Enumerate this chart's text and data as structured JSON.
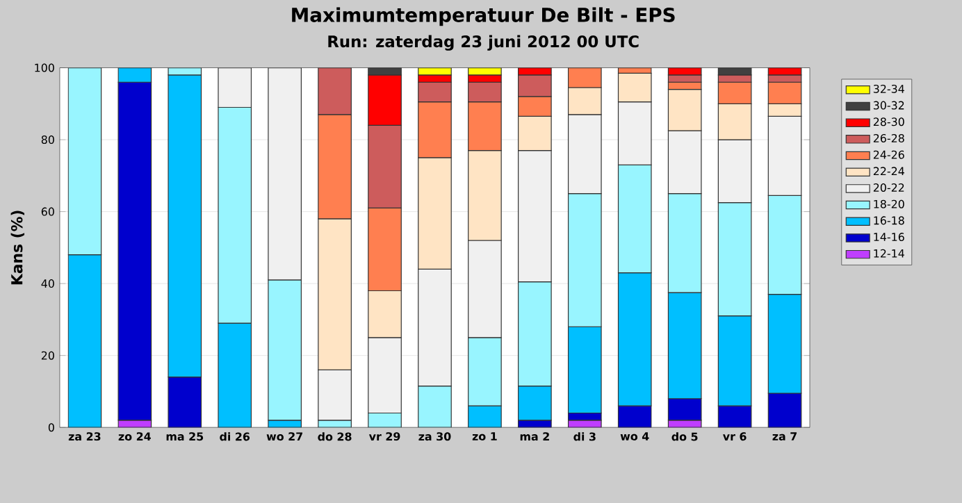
{
  "chart_data": {
    "type": "bar",
    "title": "Maximumtemperatuur De Bilt - EPS",
    "subtitle": "Run: zaterdag 23 juni 2012   00 UTC",
    "ylabel": "Kans (%)",
    "categories": [
      "za 23",
      "zo 24",
      "ma 25",
      "di 26",
      "wo 27",
      "do 28",
      "vr 29",
      "za 30",
      "zo 1",
      "ma 2",
      "di 3",
      "wo 4",
      "do 5",
      "vr 6",
      "za 7"
    ],
    "stacked": true,
    "ylim": [
      0,
      100
    ],
    "yticks": [
      0,
      20,
      40,
      60,
      80,
      100
    ],
    "grid": "y",
    "legend": "right",
    "series": [
      {
        "name": "12-14",
        "color": "#bf3eff",
        "values": [
          0,
          2,
          0,
          0,
          0,
          0,
          0,
          0,
          0,
          0,
          2,
          0,
          2,
          0,
          0
        ]
      },
      {
        "name": "14-16",
        "color": "#0000cd",
        "values": [
          0,
          94,
          14,
          0,
          0,
          0,
          0,
          0,
          0,
          2,
          2,
          6,
          6,
          6,
          9.5
        ]
      },
      {
        "name": "16-18",
        "color": "#00bfff",
        "values": [
          48,
          4,
          84,
          29,
          2,
          0,
          0,
          0,
          6,
          9.5,
          24,
          37,
          29.5,
          25,
          27.5
        ]
      },
      {
        "name": "18-20",
        "color": "#98f5ff",
        "values": [
          52,
          0,
          2,
          60,
          39,
          2,
          4,
          11.5,
          19,
          29,
          37,
          30,
          27.5,
          31.5,
          27.5
        ]
      },
      {
        "name": "20-22",
        "color": "#f0f0f0",
        "values": [
          0,
          0,
          0,
          11,
          59,
          14,
          21,
          32.5,
          27,
          36.5,
          22,
          17.5,
          17.5,
          17.5,
          22
        ]
      },
      {
        "name": "22-24",
        "color": "#ffe4c4",
        "values": [
          0,
          0,
          0,
          0,
          0,
          42,
          13,
          31,
          25,
          9.5,
          7.5,
          8,
          11.5,
          10,
          3.5
        ]
      },
      {
        "name": "24-26",
        "color": "#ff7f50",
        "values": [
          0,
          0,
          0,
          0,
          0,
          29,
          23,
          15.5,
          13.5,
          5.5,
          5.5,
          1.5,
          2,
          6,
          6
        ]
      },
      {
        "name": "26-28",
        "color": "#cd5c5c",
        "values": [
          0,
          0,
          0,
          0,
          0,
          13,
          23,
          5.5,
          5.5,
          6,
          0,
          0,
          2,
          2,
          2
        ]
      },
      {
        "name": "28-30",
        "color": "#ff0000",
        "values": [
          0,
          0,
          0,
          0,
          0,
          0,
          14,
          2,
          2,
          2,
          0,
          0,
          2,
          0,
          2
        ]
      },
      {
        "name": "30-32",
        "color": "#404040",
        "values": [
          0,
          0,
          0,
          0,
          0,
          0,
          2,
          0,
          0,
          0,
          0,
          0,
          0,
          2,
          0
        ]
      },
      {
        "name": "32-34",
        "color": "#ffff00",
        "values": [
          0,
          0,
          0,
          0,
          0,
          0,
          0,
          2,
          2,
          0,
          0,
          0,
          0,
          0,
          0
        ]
      }
    ]
  }
}
